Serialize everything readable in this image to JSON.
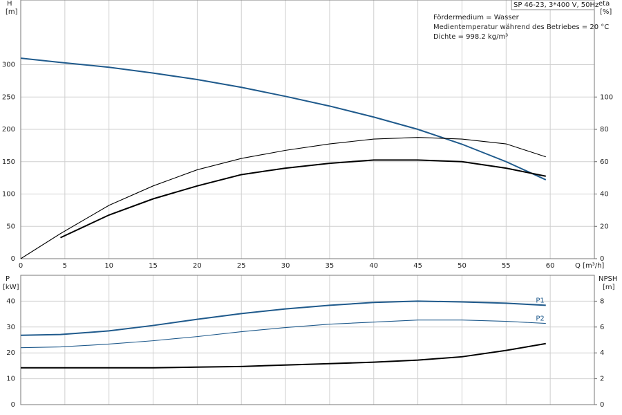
{
  "chart_data": [
    {
      "type": "line",
      "title": "SP 46-23, 3*400 V, 50Hz",
      "annotations": [
        "Fördermedium = Wasser",
        "Medientemperatur während des Betriebes = 20 °C",
        "Dichte = 998.2 kg/m³"
      ],
      "xlabel": "Q [m³/h]",
      "ylabel": "H",
      "yunit": "[m]",
      "y2label": "eta",
      "y2unit": "[%]",
      "x": [
        0,
        4.5,
        10,
        15,
        20,
        25,
        30,
        35,
        40,
        45,
        50,
        55,
        59.5
      ],
      "xlim": [
        0,
        65
      ],
      "xticks": [
        0,
        5,
        10,
        15,
        20,
        25,
        30,
        35,
        40,
        45,
        50,
        55,
        60
      ],
      "ylim": [
        0,
        400
      ],
      "yticks": [
        0,
        50,
        100,
        150,
        200,
        250,
        300
      ],
      "y2lim": [
        0,
        160
      ],
      "y2ticks": [
        0,
        20,
        40,
        60,
        80,
        100
      ],
      "grid": true,
      "series": [
        {
          "color": "#1f5a8c",
          "style": "thick",
          "values": [
            310,
            303.5,
            296,
            287,
            277,
            265,
            251,
            236,
            219,
            200,
            177,
            150,
            122
          ]
        },
        {
          "color": "#000000",
          "style": "thin",
          "axis": "y2",
          "values": [
            0,
            15.5,
            33,
            45,
            55,
            62,
            67,
            71,
            74,
            75,
            74,
            71,
            63
          ]
        },
        {
          "color": "#000000",
          "style": "thick",
          "axis": "y2",
          "values": [
            null,
            13,
            27,
            37,
            45,
            52,
            56,
            59,
            61,
            61,
            60,
            56,
            51
          ]
        }
      ]
    },
    {
      "type": "line",
      "ylabel": "P",
      "yunit": "[kW]",
      "y2label": "NPSH",
      "y2unit": "[m]",
      "x": [
        0,
        4.5,
        10,
        15,
        20,
        25,
        30,
        35,
        40,
        45,
        50,
        55,
        59.5
      ],
      "xlim": [
        0,
        65
      ],
      "ylim": [
        0,
        50
      ],
      "yticks": [
        0,
        10,
        20,
        30,
        40
      ],
      "y2lim": [
        0,
        10
      ],
      "y2ticks": [
        0,
        2,
        4,
        6,
        8
      ],
      "grid": true,
      "series": [
        {
          "name": "P1",
          "color": "#1f5a8c",
          "style": "thick",
          "values": [
            26.8,
            27.1,
            28.5,
            30.6,
            33,
            35.2,
            37,
            38.4,
            39.5,
            40,
            39.7,
            39.2,
            38.4
          ]
        },
        {
          "name": "P2",
          "color": "#1f5a8c",
          "style": "thin",
          "values": [
            22,
            22.3,
            23.4,
            24.7,
            26.3,
            28.2,
            29.8,
            31.1,
            31.9,
            32.7,
            32.7,
            32.2,
            31.4
          ]
        },
        {
          "color": "#000000",
          "style": "thick",
          "axis": "y2",
          "values": [
            2.85,
            2.85,
            2.85,
            2.85,
            2.9,
            2.95,
            3.06,
            3.17,
            3.28,
            3.44,
            3.7,
            4.19,
            4.72
          ]
        }
      ]
    }
  ]
}
